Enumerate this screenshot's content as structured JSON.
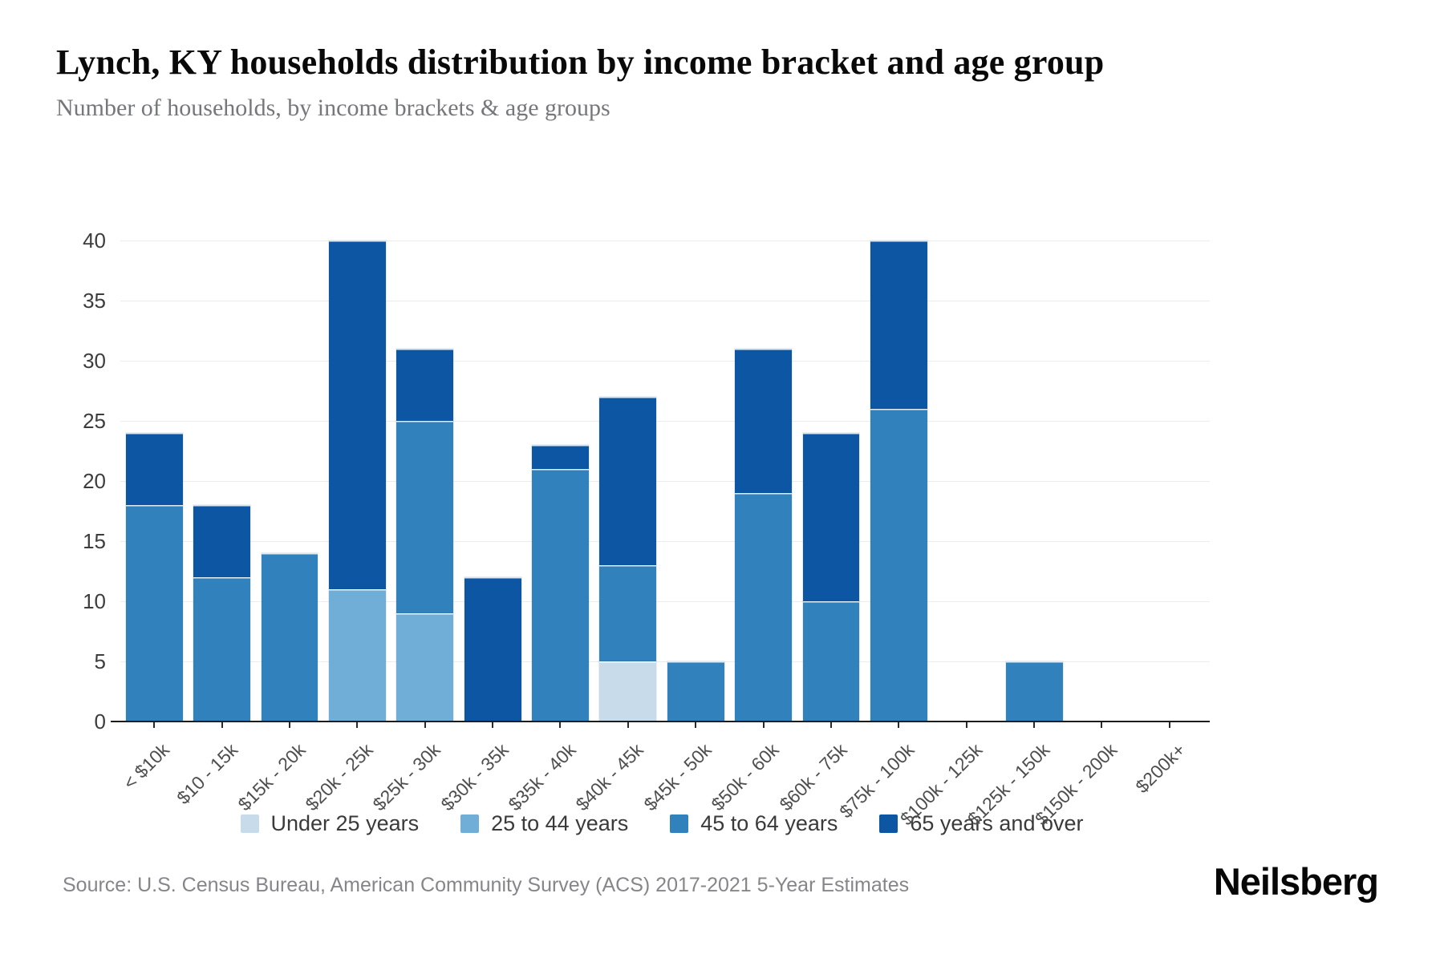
{
  "header": {
    "title": "Lynch, KY households distribution by income bracket and age group",
    "subtitle": "Number of households, by income brackets & age groups"
  },
  "footer": {
    "source": "Source: U.S. Census Bureau, American Community Survey (ACS) 2017-2021 5-Year Estimates",
    "brand": "Neilsberg"
  },
  "colors": {
    "under_25": "#c7dbeb",
    "age_25_44": "#70aed7",
    "age_45_64": "#3181bd",
    "age_65_over": "#0d56a3",
    "gridline": "#ececec",
    "axis": "#1c1c1c"
  },
  "chart_data": {
    "type": "bar",
    "stacked": true,
    "grid": true,
    "legend_position": "bottom",
    "ylim": [
      0,
      40
    ],
    "yticks": [
      0,
      5,
      10,
      15,
      20,
      25,
      30,
      35,
      40
    ],
    "xlabel": "",
    "ylabel": "",
    "categories": [
      "< $10k",
      "$10 - 15k",
      "$15k - 20k",
      "$20k - 25k",
      "$25k - 30k",
      "$30k - 35k",
      "$35k - 40k",
      "$40k - 45k",
      "$45k - 50k",
      "$50k - 60k",
      "$60k - 75k",
      "$75k - 100k",
      "$100k - 125k",
      "$125k - 150k",
      "$150k - 200k",
      "$200k+"
    ],
    "series": [
      {
        "name": "Under 25 years",
        "color": "#c7dbeb",
        "values": [
          0,
          0,
          0,
          0,
          0,
          0,
          0,
          5,
          0,
          0,
          0,
          0,
          0,
          0,
          0,
          0
        ]
      },
      {
        "name": "25 to 44 years",
        "color": "#70aed7",
        "values": [
          0,
          0,
          0,
          11,
          9,
          0,
          0,
          0,
          0,
          0,
          0,
          0,
          0,
          0,
          0,
          0
        ]
      },
      {
        "name": "45 to 64 years",
        "color": "#3181bd",
        "values": [
          18,
          12,
          14,
          0,
          16,
          0,
          21,
          8,
          5,
          19,
          10,
          26,
          0,
          5,
          0,
          0
        ]
      },
      {
        "name": "65 years and over",
        "color": "#0d56a3",
        "values": [
          6,
          6,
          0,
          29,
          6,
          12,
          2,
          14,
          0,
          12,
          14,
          14,
          0,
          0,
          0,
          0
        ]
      }
    ],
    "totals": [
      24,
      18,
      14,
      40,
      31,
      12,
      23,
      27,
      5,
      31,
      24,
      40,
      0,
      5,
      0,
      0
    ]
  }
}
